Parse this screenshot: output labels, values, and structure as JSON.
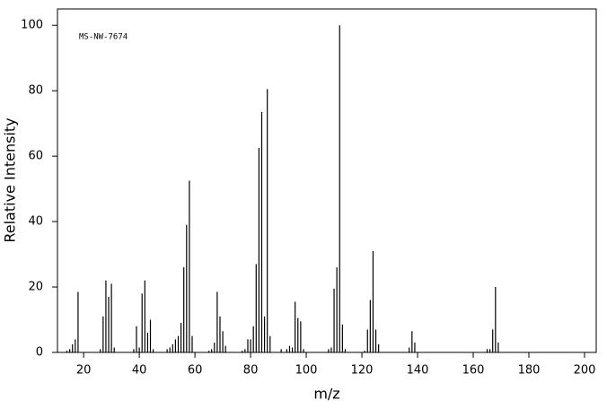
{
  "chart_data": {
    "type": "stem",
    "annotation": "MS-NW-7674",
    "xlabel": "m/z",
    "ylabel": "Relative Intensity",
    "color": "#000000",
    "x": [
      14,
      15,
      16,
      17,
      18,
      26,
      27,
      28,
      29,
      30,
      31,
      38,
      39,
      40,
      41,
      42,
      43,
      44,
      45,
      50,
      51,
      52,
      53,
      54,
      55,
      56,
      57,
      58,
      59,
      65,
      66,
      67,
      68,
      69,
      70,
      71,
      77,
      78,
      79,
      80,
      81,
      82,
      83,
      84,
      85,
      86,
      87,
      91,
      93,
      94,
      95,
      96,
      97,
      98,
      99,
      108,
      109,
      110,
      111,
      112,
      113,
      114,
      121,
      122,
      123,
      124,
      125,
      126,
      137,
      138,
      139,
      165,
      166,
      167,
      168,
      169
    ],
    "values": [
      0.5,
      1,
      2.5,
      4,
      18.5,
      1,
      11,
      22,
      17,
      21,
      1.5,
      1,
      8,
      1.5,
      18,
      22,
      6,
      10,
      1,
      1,
      1.5,
      2.5,
      4,
      5,
      9,
      26,
      39,
      52.5,
      5,
      0.5,
      1,
      3,
      18.5,
      11,
      6.5,
      2,
      0.5,
      1,
      4,
      4,
      8,
      27,
      62.5,
      73.5,
      11,
      80.5,
      5,
      1,
      1,
      2,
      1.5,
      15.5,
      10.5,
      9.5,
      1,
      1,
      1.5,
      19.5,
      26,
      100,
      8.5,
      1,
      0.5,
      7,
      16,
      31,
      7,
      2.5,
      1.5,
      6.5,
      3,
      1,
      1,
      7,
      20,
      3
    ],
    "xlim": [
      10.6,
      204.2
    ],
    "ylim": [
      0,
      105
    ],
    "xticks": [
      20,
      40,
      60,
      80,
      100,
      120,
      140,
      160,
      180,
      200
    ],
    "yticks": [
      0,
      20,
      40,
      60,
      80,
      100
    ]
  }
}
